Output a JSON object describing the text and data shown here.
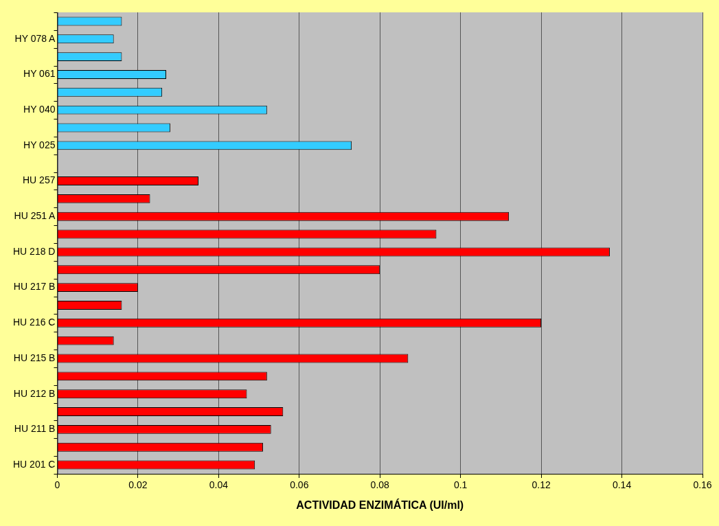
{
  "chart_data": {
    "type": "bar",
    "orientation": "horizontal",
    "xlabel": "ACTIVIDAD ENZIMÁTICA (UI/ml)",
    "categories": [
      null,
      "HY 078 A",
      null,
      "HY 061",
      null,
      "HY 040",
      null,
      "HY 025",
      null,
      "HU 257",
      null,
      "HU 251 A",
      null,
      "HU 218 D",
      null,
      "HU 217 B",
      null,
      "HU 216 C",
      null,
      "HU 215 B",
      null,
      "HU 212 B",
      null,
      "HU 211 B",
      null,
      "HU 201 C"
    ],
    "values": [
      0.016,
      0.014,
      0.016,
      0.027,
      0.026,
      0.052,
      0.028,
      0.073,
      null,
      0.035,
      0.023,
      0.112,
      0.094,
      0.137,
      0.08,
      0.02,
      0.016,
      0.12,
      0.014,
      0.087,
      0.052,
      0.047,
      0.056,
      0.053,
      0.051,
      0.049
    ],
    "colors": [
      "#33ccff",
      "#33ccff",
      "#33ccff",
      "#33ccff",
      "#33ccff",
      "#33ccff",
      "#33ccff",
      "#33ccff",
      "#33ccff",
      "#ff0000",
      "#ff0000",
      "#ff0000",
      "#ff0000",
      "#ff0000",
      "#ff0000",
      "#ff0000",
      "#ff0000",
      "#ff0000",
      "#ff0000",
      "#ff0000",
      "#ff0000",
      "#ff0000",
      "#ff0000",
      "#ff0000",
      "#ff0000",
      "#ff0000"
    ],
    "xlim": [
      0,
      0.16
    ],
    "xticks": [
      0,
      0.02,
      0.04,
      0.06,
      0.08,
      0.1,
      0.12,
      0.14,
      0.16
    ],
    "grid": "x",
    "legend": false
  }
}
